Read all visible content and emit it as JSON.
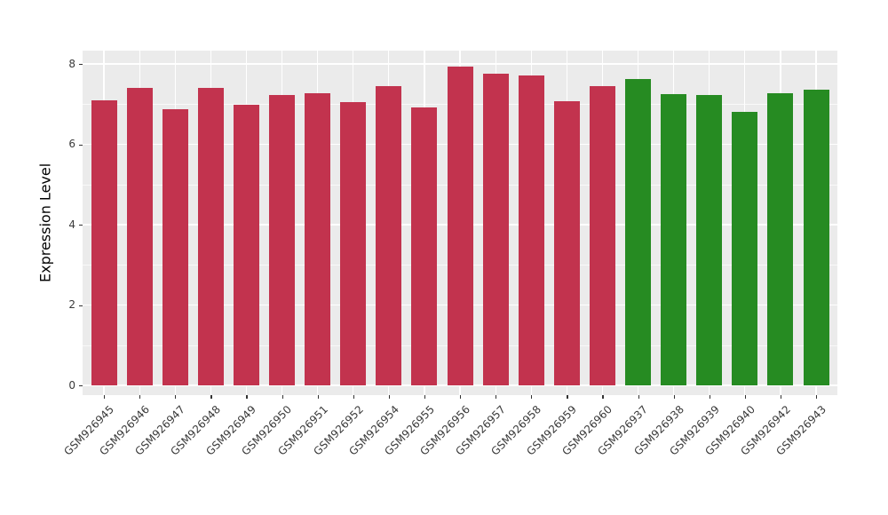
{
  "chart_data": {
    "type": "bar",
    "title": "",
    "xlabel": "",
    "ylabel": "Expression Level",
    "ylim": [
      0,
      8.3
    ],
    "yticks": [
      0,
      2,
      4,
      6,
      8
    ],
    "grid": true,
    "legend": false,
    "x_tick_rotation_deg": 45,
    "panel_bg": "#EBEBEB",
    "grid_color": "#FFFFFF",
    "axis_text_color": "#3a3a3a",
    "bar_colors": {
      "red_group": "#C2334E",
      "green_group": "#268B22"
    },
    "bars": [
      {
        "label": "GSM926945",
        "value": 7.09,
        "color": "#C2334E"
      },
      {
        "label": "GSM926946",
        "value": 7.4,
        "color": "#C2334E"
      },
      {
        "label": "GSM926947",
        "value": 6.87,
        "color": "#C2334E"
      },
      {
        "label": "GSM926948",
        "value": 7.4,
        "color": "#C2334E"
      },
      {
        "label": "GSM926949",
        "value": 6.99,
        "color": "#C2334E"
      },
      {
        "label": "GSM926950",
        "value": 7.22,
        "color": "#C2334E"
      },
      {
        "label": "GSM926951",
        "value": 7.26,
        "color": "#C2334E"
      },
      {
        "label": "GSM926952",
        "value": 7.06,
        "color": "#C2334E"
      },
      {
        "label": "GSM926954",
        "value": 7.44,
        "color": "#C2334E"
      },
      {
        "label": "GSM926955",
        "value": 6.91,
        "color": "#C2334E"
      },
      {
        "label": "GSM926956",
        "value": 7.93,
        "color": "#C2334E"
      },
      {
        "label": "GSM926957",
        "value": 7.75,
        "color": "#C2334E"
      },
      {
        "label": "GSM926958",
        "value": 7.71,
        "color": "#C2334E"
      },
      {
        "label": "GSM926959",
        "value": 7.08,
        "color": "#C2334E"
      },
      {
        "label": "GSM926960",
        "value": 7.44,
        "color": "#C2334E"
      },
      {
        "label": "GSM926937",
        "value": 7.62,
        "color": "#268B22"
      },
      {
        "label": "GSM926938",
        "value": 7.25,
        "color": "#268B22"
      },
      {
        "label": "GSM926939",
        "value": 7.23,
        "color": "#268B22"
      },
      {
        "label": "GSM926940",
        "value": 6.81,
        "color": "#268B22"
      },
      {
        "label": "GSM926942",
        "value": 7.28,
        "color": "#268B22"
      },
      {
        "label": "GSM926943",
        "value": 7.37,
        "color": "#268B22"
      }
    ]
  }
}
